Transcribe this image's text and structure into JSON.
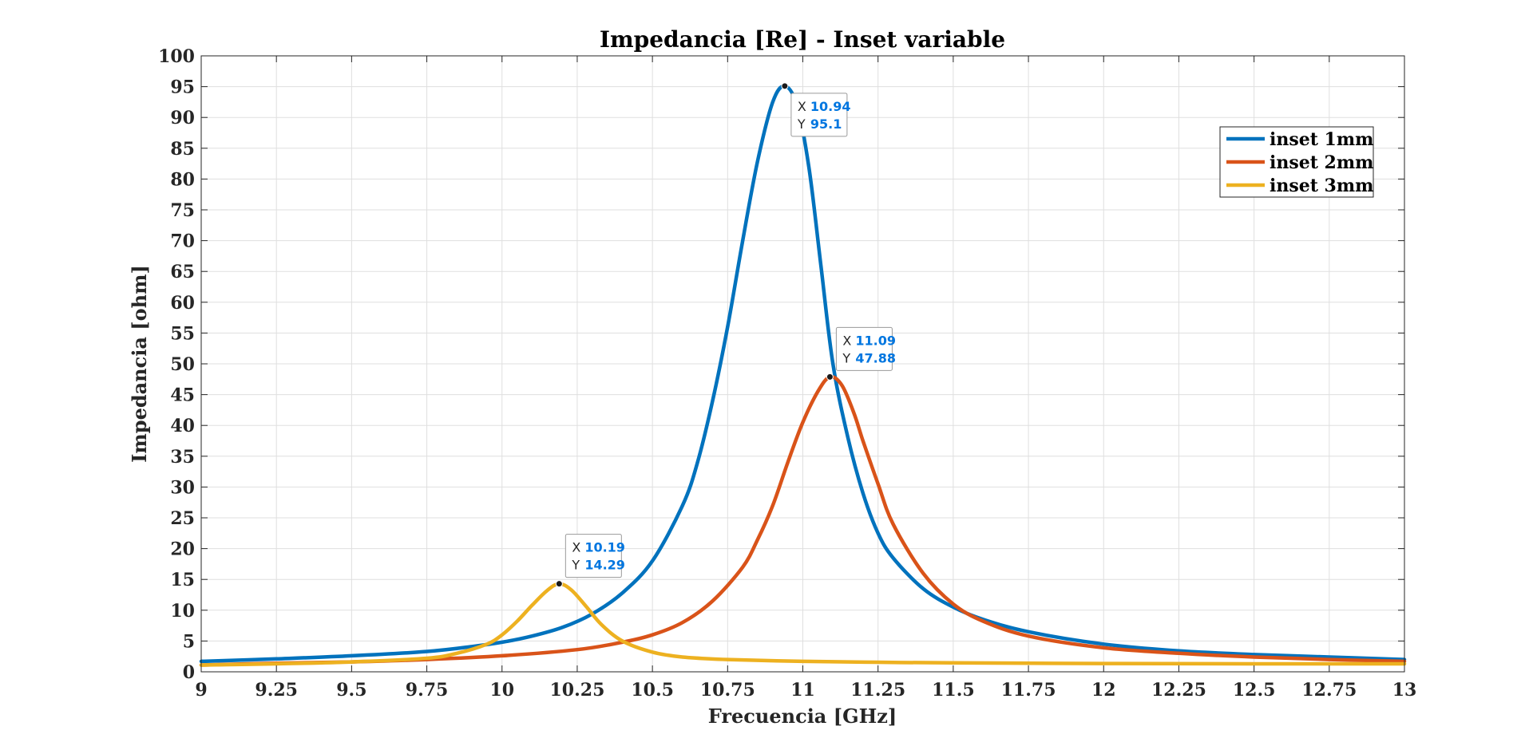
{
  "chart_data": {
    "type": "line",
    "title": "Impedancia [Re] - Inset variable",
    "xlabel": "Frecuencia [GHz]",
    "ylabel": "Impedancia [ohm]",
    "xlim": [
      9,
      13
    ],
    "ylim": [
      0,
      100
    ],
    "xticks": [
      9,
      9.25,
      9.5,
      9.75,
      10,
      10.25,
      10.5,
      10.75,
      11,
      11.25,
      11.5,
      11.75,
      12,
      12.25,
      12.5,
      12.75,
      13
    ],
    "xtick_labels": [
      "9",
      "9.25",
      "9.5",
      "9.75",
      "10",
      "10.25",
      "10.5",
      "10.75",
      "11",
      "11.25",
      "11.5",
      "11.75",
      "12",
      "12.25",
      "12.5",
      "12.75",
      "13"
    ],
    "yticks": [
      0,
      5,
      10,
      15,
      20,
      25,
      30,
      35,
      40,
      45,
      50,
      55,
      60,
      65,
      70,
      75,
      80,
      85,
      90,
      95,
      100
    ],
    "ytick_labels": [
      "0",
      "5",
      "10",
      "15",
      "20",
      "25",
      "30",
      "35",
      "40",
      "45",
      "50",
      "55",
      "60",
      "65",
      "70",
      "75",
      "80",
      "85",
      "90",
      "95",
      "100"
    ],
    "grid": true,
    "legend_position": "top-right",
    "series": [
      {
        "name": "inset 1mm",
        "color": "#0072BD",
        "x": [
          9.0,
          9.25,
          9.5,
          9.75,
          9.9,
          10.0,
          10.1,
          10.2,
          10.3,
          10.4,
          10.5,
          10.6,
          10.65,
          10.7,
          10.75,
          10.8,
          10.85,
          10.9,
          10.94,
          10.98,
          11.02,
          11.06,
          11.1,
          11.15,
          11.2,
          11.25,
          11.3,
          11.4,
          11.5,
          11.6,
          11.75,
          12.0,
          12.25,
          12.5,
          12.75,
          13.0
        ],
        "y": [
          1.7,
          2.1,
          2.6,
          3.3,
          4.1,
          4.8,
          5.8,
          7.2,
          9.4,
          12.8,
          18.0,
          27.0,
          34.0,
          44.0,
          56.0,
          70.0,
          83.0,
          92.5,
          95.1,
          92.0,
          82.0,
          66.0,
          50.0,
          38.0,
          29.0,
          22.5,
          18.5,
          13.5,
          10.5,
          8.5,
          6.5,
          4.5,
          3.4,
          2.8,
          2.4,
          2.0
        ]
      },
      {
        "name": "inset 2mm",
        "color": "#D95319",
        "x": [
          9.0,
          9.25,
          9.5,
          9.75,
          10.0,
          10.25,
          10.4,
          10.5,
          10.6,
          10.7,
          10.8,
          10.85,
          10.9,
          10.95,
          11.0,
          11.05,
          11.09,
          11.13,
          11.17,
          11.2,
          11.25,
          11.3,
          11.4,
          11.5,
          11.6,
          11.75,
          12.0,
          12.25,
          12.5,
          12.75,
          13.0
        ],
        "y": [
          1.1,
          1.4,
          1.6,
          2.0,
          2.6,
          3.6,
          4.8,
          6.0,
          8.0,
          11.5,
          17.0,
          21.5,
          27.0,
          34.0,
          40.5,
          45.5,
          47.88,
          46.5,
          42.0,
          37.5,
          30.5,
          24.0,
          16.0,
          11.0,
          8.2,
          5.8,
          3.9,
          3.0,
          2.4,
          2.0,
          1.7
        ]
      },
      {
        "name": "inset 3mm",
        "color": "#EDB120",
        "x": [
          9.0,
          9.25,
          9.5,
          9.75,
          9.85,
          9.95,
          10.0,
          10.05,
          10.1,
          10.15,
          10.19,
          10.23,
          10.28,
          10.33,
          10.4,
          10.5,
          10.6,
          10.75,
          11.0,
          11.25,
          11.5,
          12.0,
          12.5,
          13.0
        ],
        "y": [
          1.1,
          1.3,
          1.6,
          2.2,
          3.0,
          4.5,
          6.0,
          8.2,
          10.8,
          13.2,
          14.29,
          13.3,
          10.6,
          7.7,
          5.0,
          3.2,
          2.4,
          2.0,
          1.7,
          1.55,
          1.45,
          1.35,
          1.3,
          1.3
        ]
      }
    ],
    "datatips": [
      {
        "x_key": "X",
        "x_value": "10.94",
        "y_key": "Y",
        "y_value": "95.1",
        "x": 10.94,
        "y": 95.1,
        "placement": "below-right"
      },
      {
        "x_key": "X",
        "x_value": "11.09",
        "y_key": "Y",
        "y_value": "47.88",
        "x": 11.09,
        "y": 47.88,
        "placement": "above-right"
      },
      {
        "x_key": "X",
        "x_value": "10.19",
        "y_key": "Y",
        "y_value": "14.29",
        "x": 10.19,
        "y": 14.29,
        "placement": "above-right"
      }
    ]
  }
}
